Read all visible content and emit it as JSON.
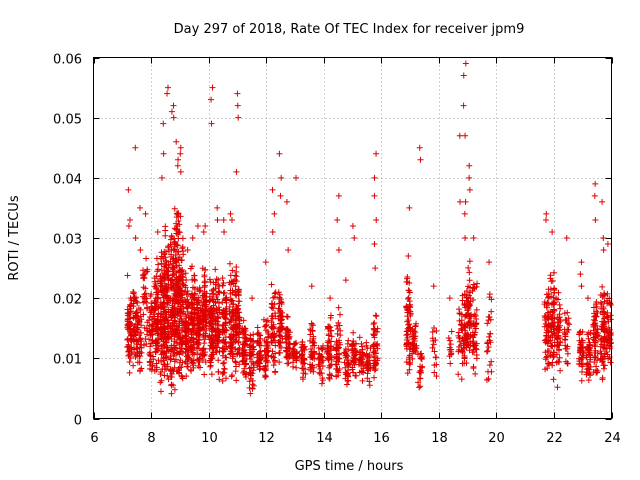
{
  "chart_data": {
    "type": "scatter",
    "title": "Day 297 of 2018, Rate Of TEC Index for receiver jpm9",
    "xlabel": "GPS time / hours",
    "ylabel": "ROTI / TECUs",
    "xlim": [
      6,
      24
    ],
    "ylim": [
      0,
      0.06
    ],
    "xticks": [
      6,
      8,
      10,
      12,
      14,
      16,
      18,
      20,
      22,
      24
    ],
    "xtick_labels": [
      "6",
      "8",
      "10",
      "12",
      "14",
      "16",
      "18",
      "20",
      "22",
      "24"
    ],
    "yticks": [
      0,
      0.01,
      0.02,
      0.03,
      0.04,
      0.05,
      0.06
    ],
    "ytick_labels": [
      "0",
      "0.01",
      "0.02",
      "0.03",
      "0.04",
      "0.05",
      "0.06"
    ],
    "grid": true,
    "marker": "+",
    "color": "#e00000",
    "series": [
      {
        "name": "ROTI",
        "columns": [
          {
            "x": 7.25,
            "count": 70,
            "min": 0.006,
            "max": 0.025,
            "extra": [
              0.033,
              0.038,
              0.032
            ]
          },
          {
            "x": 7.45,
            "count": 50,
            "min": 0.007,
            "max": 0.024,
            "extra": [
              0.045,
              0.03
            ]
          },
          {
            "x": 7.6,
            "count": 40,
            "min": 0.006,
            "max": 0.019,
            "extra": [
              0.035,
              0.028
            ]
          },
          {
            "x": 7.8,
            "count": 35,
            "min": 0.01,
            "max": 0.03,
            "extra": [
              0.034
            ]
          },
          {
            "x": 8.0,
            "count": 50,
            "min": 0.006,
            "max": 0.022,
            "extra": []
          },
          {
            "x": 8.2,
            "count": 80,
            "min": 0.005,
            "max": 0.028,
            "extra": [
              0.031
            ]
          },
          {
            "x": 8.4,
            "count": 110,
            "min": 0.004,
            "max": 0.03,
            "extra": [
              0.044,
              0.04,
              0.049
            ]
          },
          {
            "x": 8.55,
            "count": 100,
            "min": 0.004,
            "max": 0.035,
            "extra": [
              0.055,
              0.054
            ]
          },
          {
            "x": 8.75,
            "count": 120,
            "min": 0.003,
            "max": 0.033,
            "extra": [
              0.05,
              0.051,
              0.052
            ]
          },
          {
            "x": 8.9,
            "count": 110,
            "min": 0.004,
            "max": 0.038,
            "extra": [
              0.042,
              0.046,
              0.043
            ]
          },
          {
            "x": 9.05,
            "count": 100,
            "min": 0.005,
            "max": 0.034,
            "extra": [
              0.044,
              0.045,
              0.041
            ]
          },
          {
            "x": 9.25,
            "count": 90,
            "min": 0.006,
            "max": 0.025,
            "extra": [
              0.028
            ]
          },
          {
            "x": 9.45,
            "count": 85,
            "min": 0.006,
            "max": 0.026,
            "extra": [
              0.03
            ]
          },
          {
            "x": 9.65,
            "count": 80,
            "min": 0.006,
            "max": 0.023,
            "extra": [
              0.032
            ]
          },
          {
            "x": 9.85,
            "count": 90,
            "min": 0.006,
            "max": 0.027,
            "extra": [
              0.031,
              0.032
            ]
          },
          {
            "x": 10.1,
            "count": 85,
            "min": 0.007,
            "max": 0.024,
            "extra": [
              0.055,
              0.053,
              0.049
            ]
          },
          {
            "x": 10.3,
            "count": 70,
            "min": 0.006,
            "max": 0.025,
            "extra": [
              0.035,
              0.033
            ]
          },
          {
            "x": 10.55,
            "count": 70,
            "min": 0.006,
            "max": 0.025,
            "extra": [
              0.033,
              0.031
            ]
          },
          {
            "x": 10.8,
            "count": 75,
            "min": 0.006,
            "max": 0.027,
            "extra": [
              0.034,
              0.033
            ]
          },
          {
            "x": 11.0,
            "count": 80,
            "min": 0.005,
            "max": 0.026,
            "extra": [
              0.054,
              0.052,
              0.05,
              0.041
            ]
          },
          {
            "x": 11.25,
            "count": 55,
            "min": 0.006,
            "max": 0.017,
            "extra": []
          },
          {
            "x": 11.5,
            "count": 50,
            "min": 0.004,
            "max": 0.015,
            "extra": [
              0.02
            ]
          },
          {
            "x": 11.75,
            "count": 40,
            "min": 0.006,
            "max": 0.016,
            "extra": []
          },
          {
            "x": 12.0,
            "count": 45,
            "min": 0.006,
            "max": 0.017,
            "extra": [
              0.026
            ]
          },
          {
            "x": 12.25,
            "count": 50,
            "min": 0.006,
            "max": 0.024,
            "extra": [
              0.034,
              0.038,
              0.031
            ]
          },
          {
            "x": 12.5,
            "count": 60,
            "min": 0.008,
            "max": 0.022,
            "extra": [
              0.044,
              0.04,
              0.037
            ]
          },
          {
            "x": 12.75,
            "count": 45,
            "min": 0.008,
            "max": 0.018,
            "extra": [
              0.036,
              0.028
            ]
          },
          {
            "x": 13.0,
            "count": 30,
            "min": 0.008,
            "max": 0.014,
            "extra": [
              0.04
            ]
          },
          {
            "x": 13.3,
            "count": 35,
            "min": 0.006,
            "max": 0.014,
            "extra": []
          },
          {
            "x": 13.6,
            "count": 40,
            "min": 0.006,
            "max": 0.017,
            "extra": [
              0.022
            ]
          },
          {
            "x": 13.9,
            "count": 30,
            "min": 0.005,
            "max": 0.013,
            "extra": []
          },
          {
            "x": 14.2,
            "count": 50,
            "min": 0.005,
            "max": 0.018,
            "extra": [
              0.02
            ]
          },
          {
            "x": 14.5,
            "count": 45,
            "min": 0.005,
            "max": 0.019,
            "extra": [
              0.037,
              0.033,
              0.028
            ]
          },
          {
            "x": 14.8,
            "count": 35,
            "min": 0.005,
            "max": 0.013,
            "extra": [
              0.023
            ]
          },
          {
            "x": 15.05,
            "count": 35,
            "min": 0.006,
            "max": 0.015,
            "extra": [
              0.032,
              0.03
            ]
          },
          {
            "x": 15.3,
            "count": 30,
            "min": 0.006,
            "max": 0.014,
            "extra": []
          },
          {
            "x": 15.55,
            "count": 30,
            "min": 0.005,
            "max": 0.013,
            "extra": []
          },
          {
            "x": 15.8,
            "count": 45,
            "min": 0.005,
            "max": 0.018,
            "extra": [
              0.044,
              0.04,
              0.037,
              0.033,
              0.029,
              0.025
            ]
          },
          {
            "x": 16.95,
            "count": 70,
            "min": 0.006,
            "max": 0.025,
            "extra": [
              0.035,
              0.027
            ]
          },
          {
            "x": 17.15,
            "count": 35,
            "min": 0.008,
            "max": 0.018,
            "extra": []
          },
          {
            "x": 17.35,
            "count": 20,
            "min": 0.004,
            "max": 0.012,
            "extra": [
              0.045,
              0.043
            ]
          },
          {
            "x": 17.85,
            "count": 15,
            "min": 0.006,
            "max": 0.017,
            "extra": [
              0.022
            ]
          },
          {
            "x": 18.4,
            "count": 12,
            "min": 0.008,
            "max": 0.016,
            "extra": [
              0.02
            ]
          },
          {
            "x": 18.75,
            "count": 25,
            "min": 0.005,
            "max": 0.022,
            "extra": [
              0.047,
              0.036
            ]
          },
          {
            "x": 18.9,
            "count": 45,
            "min": 0.007,
            "max": 0.023,
            "extra": [
              0.059,
              0.057,
              0.052,
              0.047,
              0.036,
              0.034,
              0.03
            ]
          },
          {
            "x": 19.05,
            "count": 55,
            "min": 0.007,
            "max": 0.027,
            "extra": [
              0.042,
              0.04,
              0.038
            ]
          },
          {
            "x": 19.25,
            "count": 45,
            "min": 0.007,
            "max": 0.024,
            "extra": [
              0.03
            ]
          },
          {
            "x": 19.75,
            "count": 25,
            "min": 0.005,
            "max": 0.021,
            "extra": [
              0.026
            ]
          },
          {
            "x": 21.75,
            "count": 55,
            "min": 0.007,
            "max": 0.024,
            "extra": [
              0.034,
              0.033
            ]
          },
          {
            "x": 21.95,
            "count": 65,
            "min": 0.006,
            "max": 0.026,
            "extra": [
              0.031
            ]
          },
          {
            "x": 22.15,
            "count": 45,
            "min": 0.005,
            "max": 0.022,
            "extra": []
          },
          {
            "x": 22.45,
            "count": 25,
            "min": 0.008,
            "max": 0.019,
            "extra": [
              0.03
            ]
          },
          {
            "x": 22.95,
            "count": 40,
            "min": 0.006,
            "max": 0.016,
            "extra": [
              0.026,
              0.024,
              0.022
            ]
          },
          {
            "x": 23.2,
            "count": 40,
            "min": 0.006,
            "max": 0.015,
            "extra": [
              0.02
            ]
          },
          {
            "x": 23.45,
            "count": 55,
            "min": 0.006,
            "max": 0.022,
            "extra": [
              0.039,
              0.037,
              0.033
            ]
          },
          {
            "x": 23.7,
            "count": 70,
            "min": 0.006,
            "max": 0.023,
            "extra": [
              0.03,
              0.028,
              0.036
            ]
          },
          {
            "x": 23.9,
            "count": 45,
            "min": 0.007,
            "max": 0.022,
            "extra": [
              0.029
            ]
          }
        ]
      }
    ]
  }
}
